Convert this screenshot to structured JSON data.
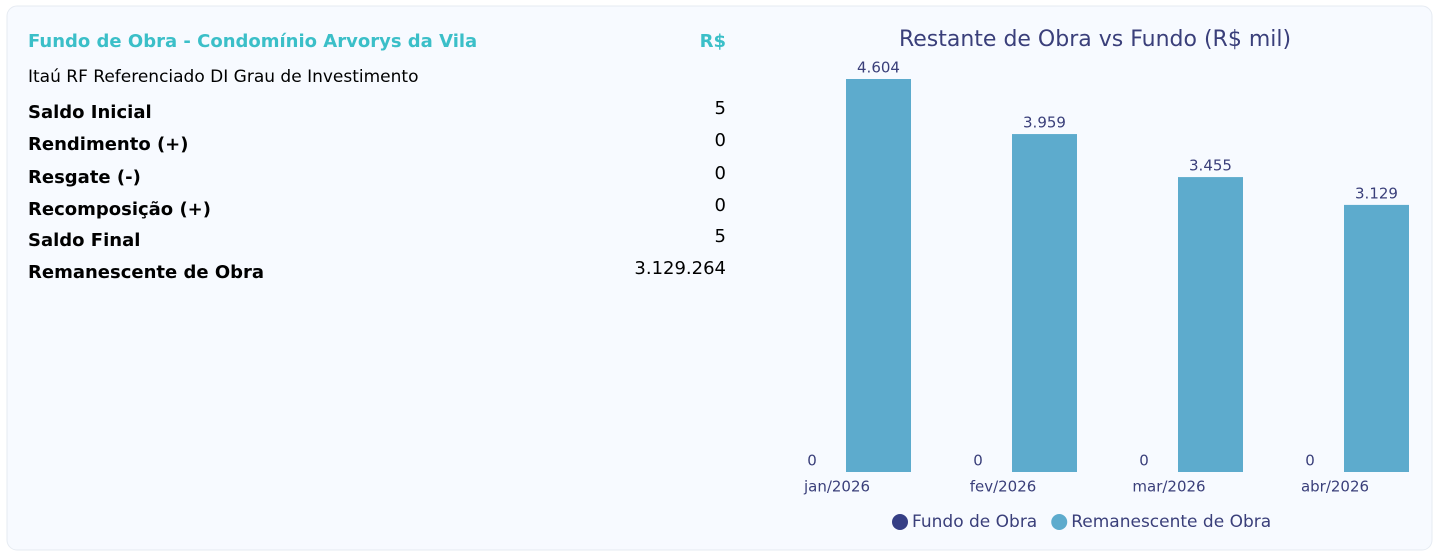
{
  "panel": {
    "title": "Fundo de Obra - Condomínio Arvorys da Vila",
    "currency": "R$",
    "subtitle": "Itaú RF Referenciado DI Grau de Investimento",
    "rows": [
      {
        "label": "Saldo Inicial",
        "value": "5"
      },
      {
        "label": "Rendimento (+)",
        "value": "0"
      },
      {
        "label": "Resgate (-)",
        "value": "0"
      },
      {
        "label": "Recomposição (+)",
        "value": "0"
      },
      {
        "label": "Saldo Final",
        "value": "5"
      },
      {
        "label": "Remanescente de Obra",
        "value": "3.129.264"
      }
    ]
  },
  "chart_data": {
    "type": "bar",
    "title": "Restante de Obra vs Fundo (R$ mil)",
    "categories": [
      "jan/2026",
      "fev/2026",
      "mar/2026",
      "abr/2026"
    ],
    "series": [
      {
        "name": "Fundo de Obra",
        "color": "#353e85",
        "values": [
          0,
          0,
          0,
          0
        ]
      },
      {
        "name": "Remanescente de Obra",
        "color": "#5dabcd",
        "values": [
          4604,
          3959,
          3455,
          3129
        ],
        "value_labels": [
          "4.604",
          "3.959",
          "3.455",
          "3.129"
        ]
      }
    ],
    "ylim": [
      0,
      4604
    ],
    "legend": "bottom"
  }
}
